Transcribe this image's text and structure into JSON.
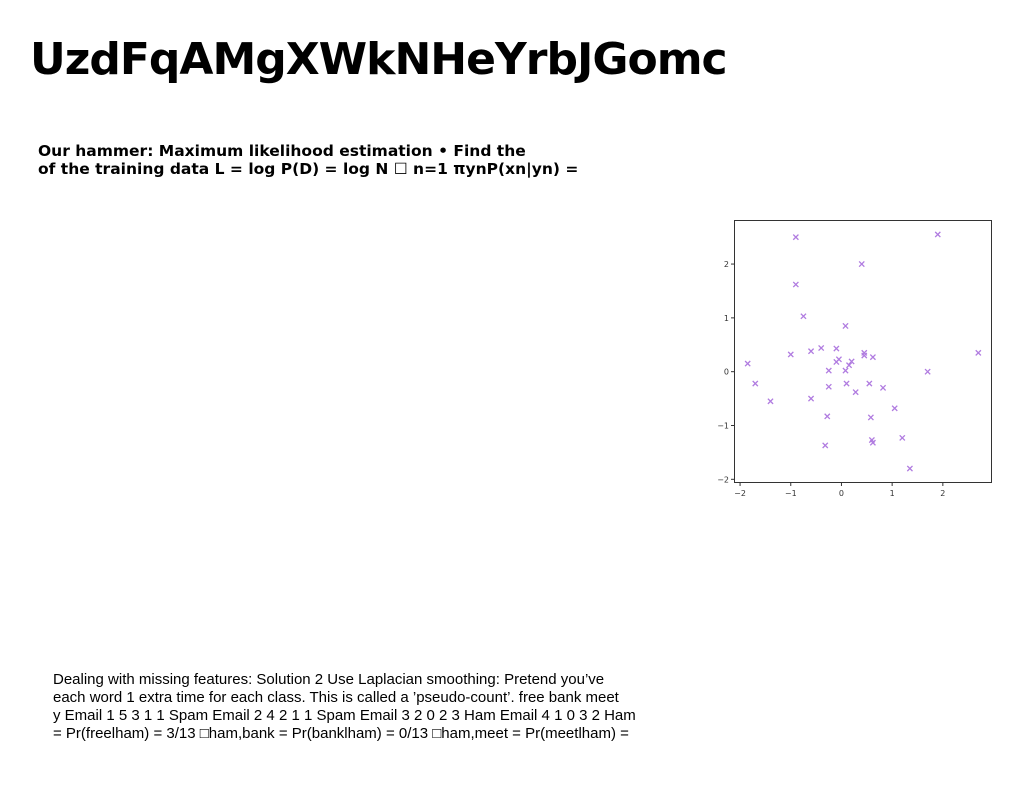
{
  "page": {
    "title": "UzdFqAMgXWkNHeYrbJGomc",
    "top_paragraph": [
      "Our hammer: Maximum likelihood estimation • Find the",
      "of the training data L = log P(D) = log N ☐ n=1 πynP(xn|yn) ="
    ],
    "bottom_paragraph": [
      "Dealing with missing features: Solution 2 Use Laplacian smoothing: Pretend you’ve",
      "each word 1 extra time for each class. This is called a ’pseudo-count’. free bank meet",
      "y Email 1 5 3 1 1 Spam Email 2 4 2 1 1 Spam Email 3 2 0 2 3 Ham Email 4 1 0 3 2 Ham",
      "= Pr(freelham) = 3/13 □ham,bank = Pr(banklham) = 0/13 □ham,meet = Pr(meetlham) ="
    ]
  },
  "chart_data": {
    "type": "scatter",
    "marker": "x",
    "marker_color": "#b07be0",
    "xlim": [
      -2.1,
      2.95
    ],
    "ylim": [
      -2.05,
      2.8
    ],
    "x_ticks": [
      -2,
      -1,
      0,
      1,
      2
    ],
    "y_ticks": [
      -2,
      -1,
      0,
      1,
      2
    ],
    "x_tick_labels": [
      "−2",
      "−1",
      "0",
      "1",
      "2"
    ],
    "y_tick_labels": [
      "−2",
      "−1",
      "0",
      "1",
      "2"
    ],
    "grid": false,
    "points": [
      {
        "x": -0.9,
        "y": 2.5
      },
      {
        "x": 1.9,
        "y": 2.55
      },
      {
        "x": 0.4,
        "y": 2.0
      },
      {
        "x": -0.9,
        "y": 1.62
      },
      {
        "x": -0.75,
        "y": 1.03
      },
      {
        "x": 0.08,
        "y": 0.85
      },
      {
        "x": -1.85,
        "y": 0.15
      },
      {
        "x": -1.0,
        "y": 0.32
      },
      {
        "x": -0.6,
        "y": 0.38
      },
      {
        "x": -0.4,
        "y": 0.44
      },
      {
        "x": -0.1,
        "y": 0.43
      },
      {
        "x": 0.45,
        "y": 0.35
      },
      {
        "x": 0.45,
        "y": 0.3
      },
      {
        "x": 0.62,
        "y": 0.27
      },
      {
        "x": -0.05,
        "y": 0.23
      },
      {
        "x": -0.1,
        "y": 0.18
      },
      {
        "x": 0.2,
        "y": 0.19
      },
      {
        "x": 0.15,
        "y": 0.12
      },
      {
        "x": 0.08,
        "y": 0.02
      },
      {
        "x": -0.25,
        "y": 0.02
      },
      {
        "x": 2.7,
        "y": 0.35
      },
      {
        "x": 1.7,
        "y": 0.0
      },
      {
        "x": -1.7,
        "y": -0.22
      },
      {
        "x": 0.1,
        "y": -0.22
      },
      {
        "x": 0.55,
        "y": -0.22
      },
      {
        "x": -0.25,
        "y": -0.28
      },
      {
        "x": 0.82,
        "y": -0.3
      },
      {
        "x": 0.28,
        "y": -0.38
      },
      {
        "x": -1.4,
        "y": -0.55
      },
      {
        "x": -0.6,
        "y": -0.5
      },
      {
        "x": 1.05,
        "y": -0.68
      },
      {
        "x": -0.28,
        "y": -0.83
      },
      {
        "x": 0.58,
        "y": -0.85
      },
      {
        "x": 1.2,
        "y": -1.23
      },
      {
        "x": 0.6,
        "y": -1.27
      },
      {
        "x": 0.62,
        "y": -1.32
      },
      {
        "x": -0.32,
        "y": -1.37
      },
      {
        "x": 1.35,
        "y": -1.8
      }
    ]
  }
}
